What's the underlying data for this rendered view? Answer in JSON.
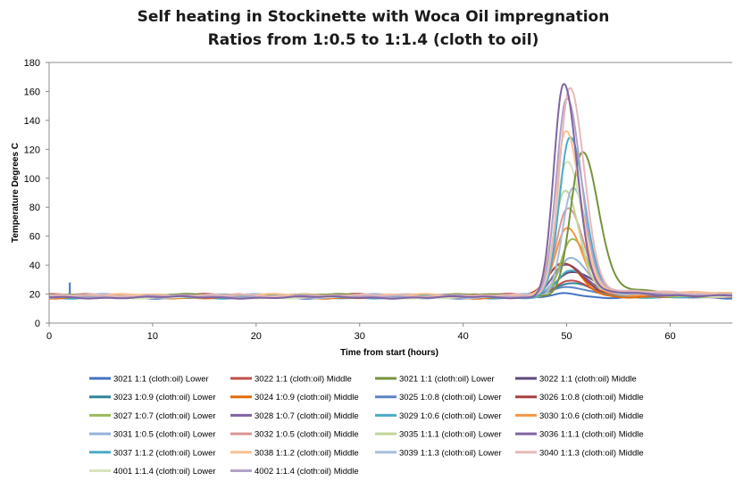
{
  "chart_data": {
    "type": "line",
    "title": "Self heating in Stockinette with Woca Oil impregnation",
    "subtitle": "Ratios from 1:0.5 to 1:1.4 (cloth to oil)",
    "xlabel": "Time from start (hours)",
    "ylabel": "Temperature Degrees C",
    "xlim": [
      0,
      66
    ],
    "ylim": [
      0,
      180
    ],
    "x_ticks": [
      0,
      10,
      20,
      30,
      40,
      50,
      60
    ],
    "y_ticks": [
      0,
      20,
      40,
      60,
      80,
      100,
      120,
      140,
      160,
      180
    ],
    "grid": "horizontal-top-only",
    "legend_position": "bottom",
    "series": [
      {
        "name": "3021 1:1 (cloth:oil) Lower",
        "color": "#4472c4",
        "peak_x": 50.0,
        "peak_y": 21,
        "width": 1.0,
        "spike": [
          2,
          28
        ]
      },
      {
        "name": "3022 1:1 (cloth:oil) Middle",
        "color": "#c0504d",
        "peak_x": 50.2,
        "peak_y": 30,
        "width": 1.3
      },
      {
        "name": "3021 1:1 (cloth:oil) Lower",
        "color": "#77933c",
        "peak_x": 51.5,
        "peak_y": 118,
        "width": 1.1
      },
      {
        "name": "3022 1:1 (cloth:oil) Middle",
        "color": "#604a7b",
        "peak_x": 50.5,
        "peak_y": 35,
        "width": 1.5
      },
      {
        "name": "3023 1:0.9 (cloth:oil) Lower",
        "color": "#31849b",
        "peak_x": 50.3,
        "peak_y": 27,
        "width": 1.4
      },
      {
        "name": "3024 1:0.9 (cloth:oil) Middle",
        "color": "#e46c0a",
        "peak_x": 49.8,
        "peak_y": 40,
        "width": 1.2
      },
      {
        "name": "3025 1:0.8 (cloth:oil) Lower",
        "color": "#5b84c4",
        "peak_x": 50.2,
        "peak_y": 25,
        "width": 1.5
      },
      {
        "name": "3026 1:0.8 (cloth:oil) Middle",
        "color": "#a5403d",
        "peak_x": 49.6,
        "peak_y": 42,
        "width": 1.3
      },
      {
        "name": "3027 1:0.7 (cloth:oil) Lower",
        "color": "#9bbb59",
        "peak_x": 50.5,
        "peak_y": 58,
        "width": 1.1
      },
      {
        "name": "3028 1:0.7 (cloth:oil) Middle",
        "color": "#8064a2",
        "peak_x": 49.9,
        "peak_y": 40,
        "width": 1.3
      },
      {
        "name": "3029 1:0.6 (cloth:oil) Lower",
        "color": "#4bacc6",
        "peak_x": 50.3,
        "peak_y": 36,
        "width": 1.2
      },
      {
        "name": "3030 1:0.6 (cloth:oil) Middle",
        "color": "#f79646",
        "peak_x": 50.0,
        "peak_y": 65,
        "width": 1.1
      },
      {
        "name": "3031 1:0.5 (cloth:oil) Lower",
        "color": "#95b3d7",
        "peak_x": 50.4,
        "peak_y": 45,
        "width": 1.2
      },
      {
        "name": "3032 1:0.5 (cloth:oil) Middle",
        "color": "#d99694",
        "peak_x": 50.1,
        "peak_y": 80,
        "width": 1.1
      },
      {
        "name": "3035 1:1.1 (cloth:oil) Lower",
        "color": "#c3d69b",
        "peak_x": 49.8,
        "peak_y": 92,
        "width": 1.0
      },
      {
        "name": "3036 1:1.1 (cloth:oil) Middle",
        "color": "#8064a2",
        "peak_x": 49.7,
        "peak_y": 165,
        "width": 0.95
      },
      {
        "name": "3037 1:1.2 (cloth:oil) Lower",
        "color": "#4bacc6",
        "peak_x": 50.3,
        "peak_y": 128,
        "width": 1.0
      },
      {
        "name": "3038 1:1.2 (cloth:oil) Middle",
        "color": "#fac090",
        "peak_x": 49.9,
        "peak_y": 132,
        "width": 1.0
      },
      {
        "name": "3039 1:1.3 (cloth:oil) Lower",
        "color": "#a6bddb",
        "peak_x": 50.6,
        "peak_y": 93,
        "width": 1.0
      },
      {
        "name": "3040 1:1.3 (cloth:oil) Middle",
        "color": "#e6b9b8",
        "peak_x": 50.3,
        "peak_y": 163,
        "width": 1.0
      },
      {
        "name": "4001 1:1.4 (cloth:oil) Lower",
        "color": "#d7e4bd",
        "peak_x": 50.0,
        "peak_y": 112,
        "width": 1.05
      },
      {
        "name": "4002 1:1.4 (cloth:oil) Middle",
        "color": "#b3a2c7",
        "peak_x": 50.0,
        "peak_y": 155,
        "width": 1.0
      }
    ]
  }
}
